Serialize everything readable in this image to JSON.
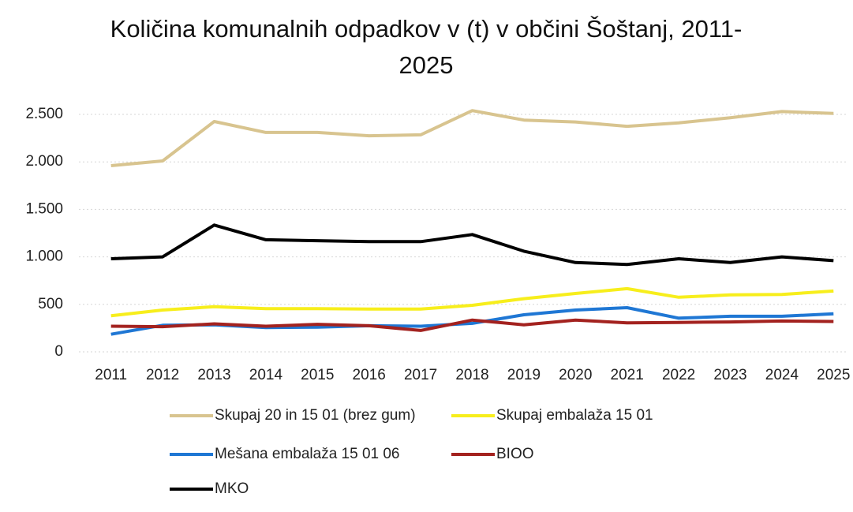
{
  "chart_data": {
    "type": "line",
    "title": "Količina komunalnih odpadkov v (t) v občini Šoštanj, 2011-2025",
    "categories": [
      "2011",
      "2012",
      "2013",
      "2014",
      "2015",
      "2016",
      "2017",
      "2018",
      "2019",
      "2020",
      "2021",
      "2022",
      "2023",
      "2024",
      "2025"
    ],
    "series": [
      {
        "name": "Skupaj 20 in 15 01 (brez gum)",
        "color": "#d8c48f",
        "values": [
          1960,
          2010,
          2425,
          2310,
          2310,
          2275,
          2285,
          2540,
          2440,
          2420,
          2375,
          2410,
          2465,
          2530,
          2510
        ]
      },
      {
        "name": "Skupaj embalaža 15 01",
        "color": "#f7ee1c",
        "values": [
          380,
          440,
          475,
          455,
          455,
          450,
          450,
          490,
          560,
          615,
          665,
          575,
          600,
          605,
          640
        ]
      },
      {
        "name": "Mešana embalaža 15 01 06",
        "color": "#1f77d4",
        "values": [
          185,
          280,
          285,
          255,
          260,
          275,
          270,
          300,
          390,
          440,
          465,
          355,
          375,
          375,
          400
        ]
      },
      {
        "name": "BIOO",
        "color": "#a3221f",
        "values": [
          270,
          265,
          295,
          270,
          290,
          275,
          225,
          335,
          285,
          335,
          305,
          310,
          315,
          325,
          320
        ]
      },
      {
        "name": "MKO",
        "color": "#000000",
        "values": [
          980,
          1000,
          1335,
          1180,
          1170,
          1160,
          1160,
          1235,
          1060,
          940,
          920,
          980,
          940,
          1000,
          960
        ]
      }
    ],
    "ylim": [
      0,
      2500
    ],
    "yticks": [
      0,
      {
        "value": 500,
        "label": "500"
      },
      {
        "value": 1000,
        "label": "1.000"
      },
      {
        "value": 1500,
        "label": "1.500"
      },
      {
        "value": 2000,
        "label": "2.000"
      },
      {
        "value": 2500,
        "label": "2.500"
      }
    ],
    "grid": true
  }
}
